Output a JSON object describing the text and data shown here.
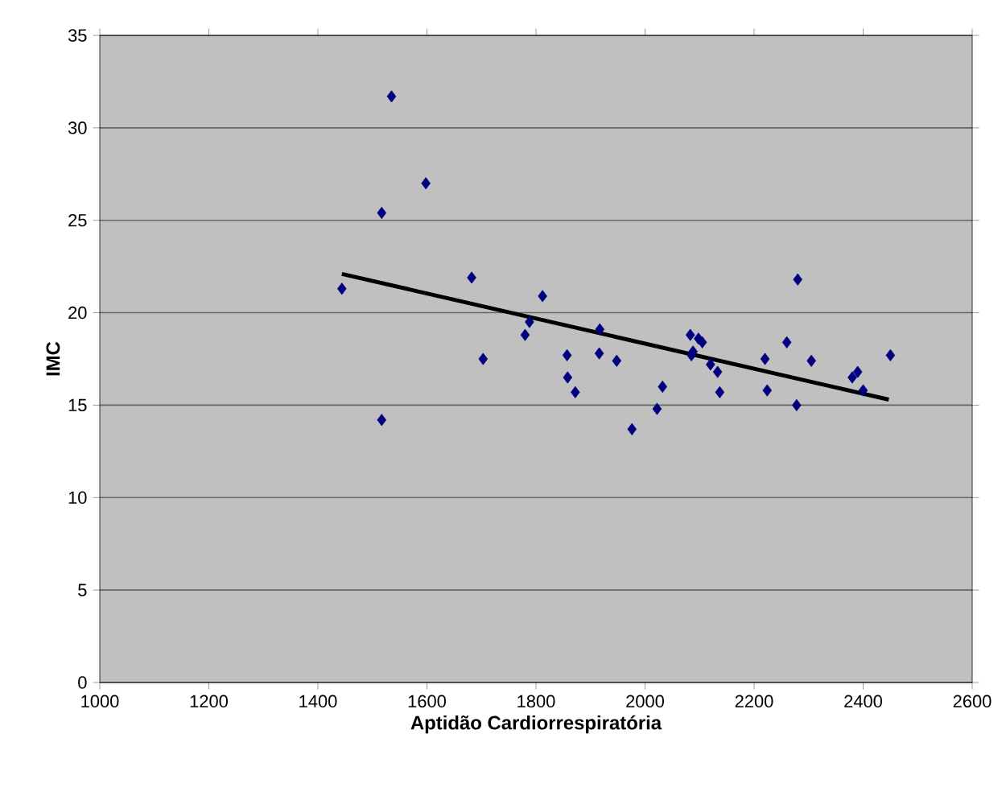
{
  "chart_data": {
    "type": "scatter",
    "xlabel": "Aptidão Cardiorrespiratória",
    "ylabel": "IMC",
    "xlim": [
      1000,
      2600
    ],
    "xticks": [
      1000,
      1200,
      1400,
      1600,
      1800,
      2000,
      2200,
      2400,
      2600
    ],
    "ylim": [
      0,
      35
    ],
    "yticks": [
      0,
      5,
      10,
      15,
      20,
      25,
      30,
      35
    ],
    "grid": "y",
    "series": [
      {
        "color": "#000080",
        "marker": "diamond",
        "x": [
          1444,
          1517,
          1535,
          1517,
          1598,
          1682,
          1703,
          1780,
          1788,
          1812,
          1857,
          1858,
          1872,
          1917,
          1916,
          1948,
          1976,
          2022,
          2032,
          2083,
          2085,
          2088,
          2098,
          2105,
          2120,
          2133,
          2137,
          2220,
          2224,
          2260,
          2280,
          2278,
          2305,
          2380,
          2390,
          2400,
          2450
        ],
        "values": [
          21.3,
          25.4,
          31.7,
          14.2,
          27.0,
          21.9,
          17.5,
          18.8,
          19.5,
          20.9,
          17.7,
          16.5,
          15.7,
          19.1,
          17.8,
          17.4,
          13.7,
          14.8,
          16.0,
          18.8,
          17.7,
          17.9,
          18.6,
          18.4,
          17.2,
          16.8,
          15.7,
          17.5,
          15.8,
          18.4,
          21.8,
          15.0,
          17.4,
          16.5,
          16.8,
          15.8,
          17.7
        ]
      },
      {
        "type": "line",
        "color": "#000000",
        "x": [
          1444,
          2447
        ],
        "values": [
          22.1,
          15.3
        ]
      }
    ]
  }
}
